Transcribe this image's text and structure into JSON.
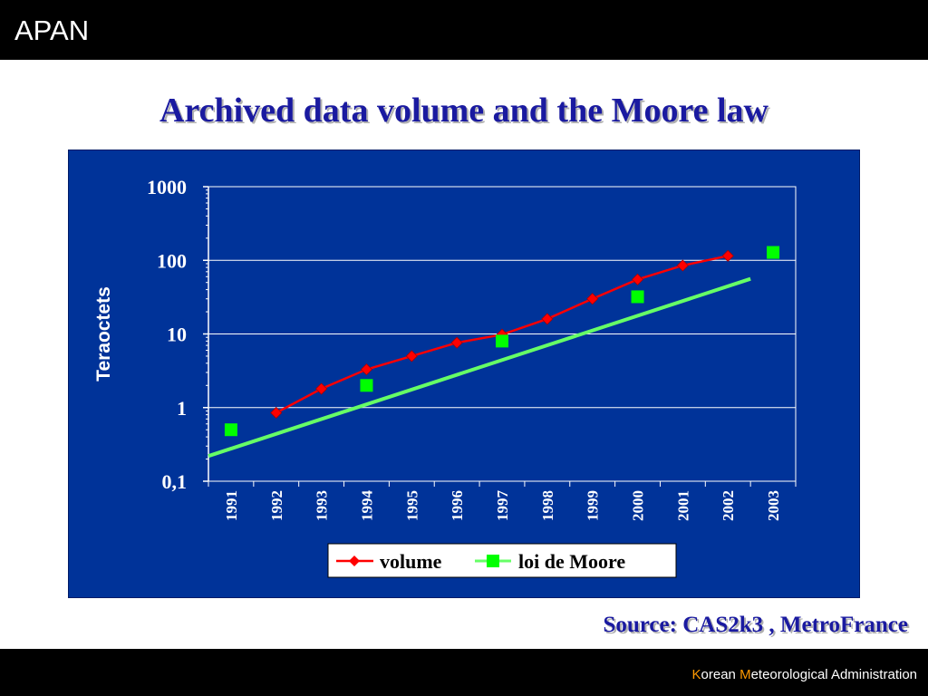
{
  "header": {
    "brand": "APAN"
  },
  "slide": {
    "title": "Archived data volume and the Moore law",
    "source": "Source: CAS2k3 , MetroFrance"
  },
  "footer": {
    "k": "K",
    "orean": "orean ",
    "m": "M",
    "rest": "eteorological Administration"
  },
  "colors": {
    "accent": "#ff9900",
    "title": "#1a1aa0",
    "chart_bg": "#003399",
    "volume": "#ff0000",
    "moore": "#00ff00",
    "moore_line": "#66ff66"
  },
  "chart_data": {
    "type": "line",
    "ylabel": "Teraoctets",
    "y_scale": "log",
    "ylim": [
      0.1,
      1000
    ],
    "y_ticks": [
      {
        "value": 1000,
        "label": "1000"
      },
      {
        "value": 100,
        "label": "100"
      },
      {
        "value": 10,
        "label": "10"
      },
      {
        "value": 1,
        "label": "1"
      },
      {
        "value": 0.1,
        "label": "0,1"
      }
    ],
    "categories": [
      "1991",
      "1992",
      "1993",
      "1994",
      "1995",
      "1996",
      "1997",
      "1998",
      "1999",
      "2000",
      "2001",
      "2002",
      "2003"
    ],
    "series": [
      {
        "name": "volume",
        "marker": "diamond",
        "values": [
          null,
          0.85,
          1.8,
          3.3,
          5.0,
          7.6,
          9.8,
          16,
          30,
          55,
          85,
          115,
          null
        ]
      },
      {
        "name": "loi de Moore",
        "marker": "square",
        "values": [
          0.5,
          null,
          null,
          2.0,
          null,
          null,
          8.0,
          null,
          null,
          32,
          null,
          null,
          128
        ]
      }
    ],
    "trend_line": {
      "from": [
        1990.5,
        0.22
      ],
      "to": [
        2002.5,
        56
      ]
    },
    "grid": true,
    "legend_position": "bottom"
  }
}
